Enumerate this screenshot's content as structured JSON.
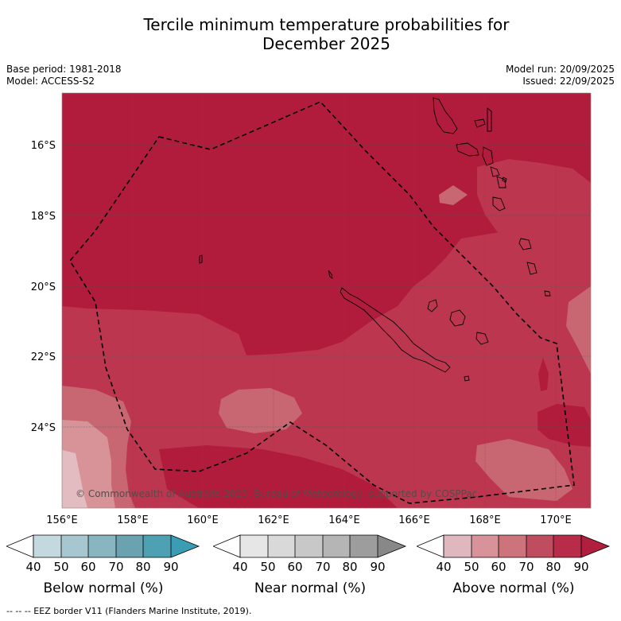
{
  "title": {
    "line1": "Tercile minimum temperature probabilities for",
    "line2": "December 2025"
  },
  "meta": {
    "base_period": "Base period: 1981-2018",
    "model": "Model: ACCESS-S2",
    "model_run": "Model run: 20/09/2025",
    "issued": "Issued: 22/09/2025"
  },
  "map": {
    "lat_labels": [
      "16°S",
      "18°S",
      "20°S",
      "22°S",
      "24°S"
    ],
    "lon_labels": [
      "156°E",
      "158°E",
      "160°E",
      "162°E",
      "164°E",
      "166°E",
      "168°E",
      "170°E"
    ],
    "copyright": "© Commonwealth of Australia 2025, Bureau of Meteorology, supported by COSPPac"
  },
  "legend": {
    "ticks": [
      "40",
      "50",
      "60",
      "70",
      "80",
      "90"
    ],
    "below": {
      "label": "Below normal (%)",
      "colors": [
        "#ffffff",
        "#c4d9df",
        "#a6c7cf",
        "#88b5c0",
        "#6aa2b0",
        "#4da1b3",
        "#3a9db4"
      ]
    },
    "near": {
      "label": "Near normal (%)",
      "colors": [
        "#ffffff",
        "#e6e6e6",
        "#d9d9d9",
        "#c8c8c8",
        "#b5b5b5",
        "#9d9d9d",
        "#888888"
      ]
    },
    "above": {
      "label": "Above normal (%)",
      "colors": [
        "#ffffff",
        "#e1b7bf",
        "#d89299",
        "#cc737b",
        "#c04d5f",
        "#b92c49",
        "#b11f3e"
      ]
    }
  },
  "footer": "--  --  -- EEZ border V11 (Flanders Marine Institute, 2019).",
  "colors": {
    "c90": "#b11c3c",
    "c80": "#bc3650",
    "c70": "#c86772",
    "c60": "#d79397",
    "c50": "#e2bcc0"
  }
}
